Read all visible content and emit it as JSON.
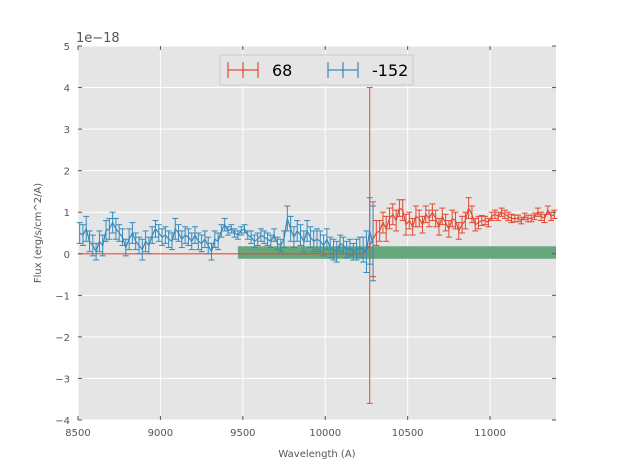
{
  "chart_data": {
    "type": "line",
    "title": "",
    "xlabel": "Wavelength (A)",
    "ylabel": "Flux (erg/s/cm^2/A)",
    "y_offset_label": "1e−18",
    "xlim": [
      8500,
      11400
    ],
    "ylim": [
      -4,
      5
    ],
    "xticks": [
      8500,
      9000,
      9500,
      10000,
      10500,
      11000
    ],
    "xtick_labels": [
      "8500",
      "9000",
      "9500",
      "10000",
      "10500",
      "11000"
    ],
    "yticks": [
      -4,
      -3,
      -2,
      -1,
      0,
      1,
      2,
      3,
      4,
      5
    ],
    "ytick_labels": [
      "−4",
      "−3",
      "−2",
      "−1",
      "0",
      "1",
      "2",
      "3",
      "4",
      "5"
    ],
    "grid": true,
    "legend_position": "top-center",
    "background": "#e5e5e5",
    "series": [
      {
        "name": "68",
        "color": "#e24a33",
        "x": [
          8500,
          10230,
          10270,
          10290,
          10310,
          10330,
          10350,
          10370,
          10390,
          10410,
          10430,
          10450,
          10470,
          10490,
          10510,
          10530,
          10550,
          10570,
          10590,
          10610,
          10630,
          10650,
          10670,
          10690,
          10710,
          10730,
          10750,
          10770,
          10790,
          10810,
          10830,
          10850,
          10870,
          10890,
          10910,
          10930,
          10950,
          10970,
          10990,
          11010,
          11030,
          11050,
          11070,
          11090,
          11110,
          11130,
          11150,
          11170,
          11190,
          11210,
          11230,
          11250,
          11270,
          11290,
          11310,
          11330,
          11350,
          11370,
          11390
        ],
        "y": [
          0,
          0,
          0.2,
          0.35,
          0.5,
          0.55,
          0.75,
          0.6,
          0.85,
          0.95,
          0.8,
          1.1,
          1.05,
          0.7,
          0.8,
          0.65,
          0.9,
          0.85,
          0.7,
          0.95,
          0.85,
          1.0,
          0.85,
          0.65,
          0.9,
          0.75,
          0.6,
          0.85,
          0.8,
          0.55,
          0.7,
          0.8,
          1.1,
          0.95,
          0.7,
          0.75,
          0.8,
          0.8,
          0.75,
          0.9,
          0.95,
          0.9,
          1.0,
          0.95,
          0.9,
          0.85,
          0.85,
          0.85,
          0.8,
          0.9,
          0.85,
          0.85,
          0.9,
          1.0,
          0.9,
          0.85,
          1.05,
          0.9,
          0.95
        ],
        "yerr": [
          0,
          0,
          3.8,
          0.9,
          0.3,
          0.25,
          0.25,
          0.3,
          0.25,
          0.25,
          0.25,
          0.2,
          0.25,
          0.25,
          0.2,
          0.2,
          0.25,
          0.2,
          0.2,
          0.2,
          0.2,
          0.2,
          0.2,
          0.2,
          0.2,
          0.2,
          0.2,
          0.2,
          0.2,
          0.2,
          0.2,
          0.2,
          0.25,
          0.2,
          0.15,
          0.15,
          0.12,
          0.1,
          0.1,
          0.1,
          0.1,
          0.1,
          0.1,
          0.1,
          0.1,
          0.1,
          0.08,
          0.08,
          0.08,
          0.08,
          0.08,
          0.08,
          0.08,
          0.1,
          0.1,
          0.1,
          0.1,
          0.1,
          0.1
        ]
      },
      {
        "name": "-152",
        "color": "#348abd",
        "x": [
          8510,
          8530,
          8550,
          8570,
          8590,
          8610,
          8630,
          8650,
          8670,
          8690,
          8710,
          8730,
          8750,
          8770,
          8790,
          8810,
          8830,
          8850,
          8870,
          8890,
          8910,
          8930,
          8950,
          8970,
          8990,
          9010,
          9030,
          9050,
          9070,
          9090,
          9110,
          9130,
          9150,
          9170,
          9190,
          9210,
          9230,
          9250,
          9270,
          9290,
          9310,
          9330,
          9350,
          9370,
          9390,
          9410,
          9430,
          9450,
          9470,
          9490,
          9510,
          9530,
          9550,
          9570,
          9590,
          9610,
          9630,
          9650,
          9670,
          9690,
          9710,
          9730,
          9750,
          9770,
          9790,
          9810,
          9830,
          9850,
          9870,
          9890,
          9910,
          9930,
          9950,
          9970,
          9990,
          10010,
          10030,
          10050,
          10070,
          10090,
          10110,
          10130,
          10150,
          10170,
          10190,
          10210,
          10230,
          10250,
          10270,
          10290
        ],
        "y": [
          0.5,
          0.45,
          0.6,
          0.3,
          0.2,
          0.05,
          0.3,
          0.2,
          0.55,
          0.6,
          0.75,
          0.6,
          0.5,
          0.4,
          0.15,
          0.35,
          0.5,
          0.3,
          0.2,
          0.1,
          0.3,
          0.2,
          0.45,
          0.6,
          0.5,
          0.4,
          0.45,
          0.35,
          0.3,
          0.6,
          0.5,
          0.35,
          0.45,
          0.4,
          0.3,
          0.45,
          0.3,
          0.25,
          0.35,
          0.2,
          0.05,
          0.35,
          0.3,
          0.55,
          0.7,
          0.55,
          0.6,
          0.5,
          0.45,
          0.55,
          0.6,
          0.45,
          0.4,
          0.3,
          0.35,
          0.45,
          0.4,
          0.35,
          0.3,
          0.45,
          0.25,
          0.2,
          0.35,
          0.85,
          0.6,
          0.4,
          0.55,
          0.45,
          0.3,
          0.55,
          0.4,
          0.3,
          0.35,
          0.3,
          0.2,
          0.35,
          0.15,
          0.1,
          0.05,
          0.25,
          0.2,
          0.1,
          0.15,
          0.05,
          0.1,
          0.15,
          0.1,
          0.05,
          0.55,
          0.25
        ],
        "yerr": [
          0.25,
          0.25,
          0.3,
          0.25,
          0.25,
          0.2,
          0.25,
          0.25,
          0.25,
          0.25,
          0.25,
          0.25,
          0.2,
          0.2,
          0.2,
          0.25,
          0.25,
          0.2,
          0.2,
          0.25,
          0.25,
          0.2,
          0.2,
          0.2,
          0.2,
          0.2,
          0.2,
          0.2,
          0.2,
          0.25,
          0.2,
          0.2,
          0.2,
          0.2,
          0.2,
          0.2,
          0.2,
          0.2,
          0.2,
          0.2,
          0.2,
          0.2,
          0.2,
          0.15,
          0.15,
          0.1,
          0.1,
          0.1,
          0.1,
          0.1,
          0.1,
          0.1,
          0.15,
          0.15,
          0.15,
          0.15,
          0.15,
          0.15,
          0.15,
          0.15,
          0.15,
          0.15,
          0.2,
          0.3,
          0.3,
          0.25,
          0.25,
          0.25,
          0.25,
          0.25,
          0.25,
          0.25,
          0.25,
          0.25,
          0.25,
          0.25,
          0.25,
          0.25,
          0.25,
          0.2,
          0.2,
          0.2,
          0.2,
          0.2,
          0.25,
          0.25,
          0.3,
          0.5,
          0.8,
          0.9
        ]
      }
    ],
    "bands": [
      {
        "color": "#5a9e6f",
        "x": [
          9470,
          11400
        ],
        "y": [
          -0.12,
          0.18
        ]
      }
    ]
  }
}
